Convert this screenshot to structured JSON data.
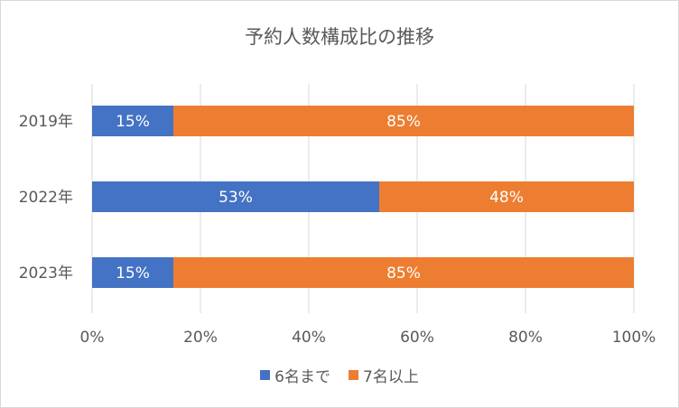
{
  "chart_data": {
    "type": "bar",
    "orientation": "horizontal",
    "stacked": true,
    "title": "予約人数構成比の推移",
    "categories": [
      "2019年",
      "2022年",
      "2023年"
    ],
    "series": [
      {
        "name": "6名まで",
        "color": "#4472C4",
        "values": [
          15,
          53,
          15
        ],
        "labels": [
          "15%",
          "53%",
          "15%"
        ]
      },
      {
        "name": "7名以上",
        "color": "#ED7D31",
        "values": [
          85,
          48,
          85
        ],
        "labels": [
          "85%",
          "48%",
          "85%"
        ]
      }
    ],
    "xlim": [
      0,
      100
    ],
    "xticks": [
      "0%",
      "20%",
      "40%",
      "60%",
      "80%",
      "100%"
    ],
    "grid": true,
    "legend_position": "bottom"
  }
}
